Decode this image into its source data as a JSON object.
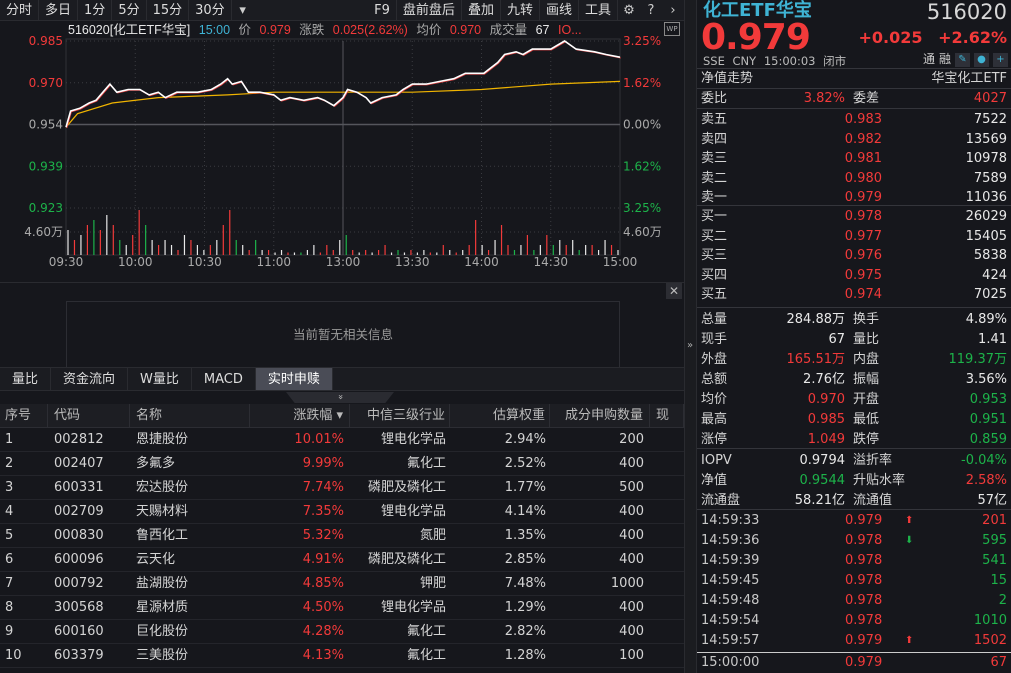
{
  "toolbar": {
    "items": [
      "分时",
      "多日",
      "1分",
      "5分",
      "15分",
      "30分"
    ],
    "more": "▾",
    "right": [
      "F9",
      "盘前盘后",
      "叠加",
      "九转",
      "画线",
      "工具"
    ],
    "icons": [
      "gear-icon",
      "help-icon",
      "chevron-right-icon"
    ]
  },
  "chart_header": {
    "code_name": "516020[化工ETF华宝]",
    "time": "15:00",
    "price_label": "价",
    "price": "0.979",
    "change_label": "涨跌",
    "change": "0.025(2.62%)",
    "avg_label": "均价",
    "avg": "0.970",
    "vol_label": "成交量",
    "vol": "67",
    "more": "IO...",
    "wp": "WP"
  },
  "chart_data": {
    "type": "line",
    "x_ticks": [
      "09:30",
      "10:00",
      "10:30",
      "11:00",
      "13:00",
      "13:30",
      "14:00",
      "14:30",
      "15:00"
    ],
    "y_ticks_left": [
      "0.985",
      "0.970",
      "0.954",
      "0.939",
      "0.923"
    ],
    "y_ticks_right": [
      "3.25%",
      "1.62%",
      "0.00%",
      "1.62%",
      "3.25%"
    ],
    "ylim": [
      0.923,
      0.985
    ],
    "prev_close": 0.954,
    "volume_tick": "4.60万",
    "volume_tick_value": 4.6,
    "colors": {
      "price": "#ffffff",
      "avg": "#f0b400",
      "up": "#f23a3a",
      "down": "#1db34a",
      "grid": "#3a3b40"
    },
    "price": [
      [
        "09:30",
        0.953
      ],
      [
        "09:32",
        0.959
      ],
      [
        "09:36",
        0.96
      ],
      [
        "09:40",
        0.962
      ],
      [
        "09:43",
        0.963
      ],
      [
        "09:46",
        0.966
      ],
      [
        "09:49",
        0.969
      ],
      [
        "09:52",
        0.966
      ],
      [
        "09:57",
        0.967
      ],
      [
        "10:02",
        0.967
      ],
      [
        "10:06",
        0.965
      ],
      [
        "10:10",
        0.966
      ],
      [
        "10:13",
        0.964
      ],
      [
        "10:18",
        0.966
      ],
      [
        "10:21",
        0.966
      ],
      [
        "10:27",
        0.966
      ],
      [
        "10:33",
        0.967
      ],
      [
        "10:37",
        0.969
      ],
      [
        "10:40",
        0.971
      ],
      [
        "10:42",
        0.969
      ],
      [
        "10:46",
        0.97
      ],
      [
        "10:49",
        0.966
      ],
      [
        "10:54",
        0.966
      ],
      [
        "11:00",
        0.965
      ],
      [
        "11:03",
        0.963
      ],
      [
        "11:07",
        0.964
      ],
      [
        "11:13",
        0.963
      ],
      [
        "11:19",
        0.964
      ],
      [
        "11:22",
        0.963
      ],
      [
        "11:26",
        0.961
      ],
      [
        "13:00",
        0.964
      ],
      [
        "13:02",
        0.967
      ],
      [
        "13:06",
        0.966
      ],
      [
        "13:10",
        0.964
      ],
      [
        "13:12",
        0.962
      ],
      [
        "13:17",
        0.964
      ],
      [
        "13:23",
        0.965
      ],
      [
        "13:26",
        0.967
      ],
      [
        "13:30",
        0.969
      ],
      [
        "13:36",
        0.969
      ],
      [
        "13:42",
        0.97
      ],
      [
        "13:48",
        0.971
      ],
      [
        "13:53",
        0.973
      ],
      [
        "14:01",
        0.973
      ],
      [
        "14:07",
        0.977
      ],
      [
        "14:10",
        0.98
      ],
      [
        "14:15",
        0.981
      ],
      [
        "14:18",
        0.98
      ],
      [
        "14:22",
        0.982
      ],
      [
        "14:30",
        0.982
      ],
      [
        "14:36",
        0.985
      ],
      [
        "14:41",
        0.982
      ],
      [
        "14:49",
        0.981
      ],
      [
        "14:54",
        0.98
      ],
      [
        "15:00",
        0.979
      ]
    ],
    "avg": [
      [
        "09:30",
        0.953
      ],
      [
        "09:35",
        0.958
      ],
      [
        "09:50",
        0.962
      ],
      [
        "10:10",
        0.964
      ],
      [
        "10:40",
        0.965
      ],
      [
        "11:00",
        0.966
      ],
      [
        "13:00",
        0.966
      ],
      [
        "13:30",
        0.966
      ],
      [
        "14:00",
        0.967
      ],
      [
        "14:30",
        0.969
      ],
      [
        "15:00",
        0.97
      ]
    ],
    "volume": [
      [
        5,
        "w"
      ],
      [
        3,
        "r"
      ],
      [
        4,
        "w"
      ],
      [
        6,
        "r"
      ],
      [
        7,
        "g"
      ],
      [
        5,
        "r"
      ],
      [
        8,
        "w"
      ],
      [
        6,
        "r"
      ],
      [
        3,
        "g"
      ],
      [
        2,
        "w"
      ],
      [
        4,
        "r"
      ],
      [
        9,
        "r"
      ],
      [
        6,
        "g"
      ],
      [
        3,
        "w"
      ],
      [
        2,
        "r"
      ],
      [
        3,
        "w"
      ],
      [
        2,
        "w"
      ],
      [
        1,
        "r"
      ],
      [
        4,
        "w"
      ],
      [
        3,
        "r"
      ],
      [
        2,
        "w"
      ],
      [
        1,
        "w"
      ],
      [
        2,
        "r"
      ],
      [
        3,
        "w"
      ],
      [
        6,
        "r"
      ],
      [
        9,
        "r"
      ],
      [
        3,
        "g"
      ],
      [
        2,
        "w"
      ],
      [
        1,
        "r"
      ],
      [
        3,
        "g"
      ],
      [
        1,
        "w"
      ],
      [
        1,
        "r"
      ],
      [
        0.5,
        "w"
      ],
      [
        1,
        "w"
      ],
      [
        0.5,
        "r"
      ],
      [
        0.5,
        "w"
      ],
      [
        0.5,
        "g"
      ],
      [
        1,
        "w"
      ],
      [
        2,
        "w"
      ],
      [
        0.5,
        "r"
      ],
      [
        2,
        "r"
      ],
      [
        1,
        "r"
      ],
      [
        3,
        "w"
      ],
      [
        4,
        "g"
      ],
      [
        1,
        "r"
      ],
      [
        0.5,
        "w"
      ],
      [
        1,
        "r"
      ],
      [
        0.5,
        "w"
      ],
      [
        1,
        "r"
      ],
      [
        2,
        "r"
      ],
      [
        0.5,
        "w"
      ],
      [
        1,
        "g"
      ],
      [
        0.5,
        "w"
      ],
      [
        1,
        "r"
      ],
      [
        0.5,
        "w"
      ],
      [
        1,
        "w"
      ],
      [
        0.5,
        "r"
      ],
      [
        0.5,
        "w"
      ],
      [
        2,
        "r"
      ],
      [
        1,
        "w"
      ],
      [
        0.5,
        "r"
      ],
      [
        1,
        "w"
      ],
      [
        2,
        "r"
      ],
      [
        7,
        "r"
      ],
      [
        2,
        "w"
      ],
      [
        1,
        "r"
      ],
      [
        3,
        "w"
      ],
      [
        6,
        "r"
      ],
      [
        2,
        "r"
      ],
      [
        1,
        "g"
      ],
      [
        2,
        "w"
      ],
      [
        4,
        "r"
      ],
      [
        1,
        "g"
      ],
      [
        2,
        "w"
      ],
      [
        4,
        "r"
      ],
      [
        2,
        "g"
      ],
      [
        3,
        "w"
      ],
      [
        2,
        "r"
      ],
      [
        3,
        "w"
      ],
      [
        1,
        "g"
      ],
      [
        2,
        "w"
      ],
      [
        2,
        "r"
      ],
      [
        1,
        "w"
      ],
      [
        3,
        "w"
      ],
      [
        2,
        "r"
      ],
      [
        1,
        "w"
      ]
    ]
  },
  "info": {
    "empty_text": "当前暂无相关信息",
    "close": "✕"
  },
  "tabs": [
    "量比",
    "资金流向",
    "W量比",
    "MACD",
    "实时申赎"
  ],
  "collapse": "»",
  "table": {
    "headers": [
      "序号",
      "代码",
      "名称",
      "涨跌幅 ▾",
      "中信三级行业",
      "估算权重",
      "成分申购数量",
      "现"
    ],
    "rows": [
      [
        "1",
        "002812",
        "恩捷股份",
        "10.01%",
        "锂电化学品",
        "2.94%",
        "200"
      ],
      [
        "2",
        "002407",
        "多氟多",
        "9.99%",
        "氟化工",
        "2.52%",
        "400"
      ],
      [
        "3",
        "600331",
        "宏达股份",
        "7.74%",
        "磷肥及磷化工",
        "1.77%",
        "500"
      ],
      [
        "4",
        "002709",
        "天赐材料",
        "7.35%",
        "锂电化学品",
        "4.14%",
        "400"
      ],
      [
        "5",
        "000830",
        "鲁西化工",
        "5.32%",
        "氮肥",
        "1.35%",
        "400"
      ],
      [
        "6",
        "600096",
        "云天化",
        "4.91%",
        "磷肥及磷化工",
        "2.85%",
        "400"
      ],
      [
        "7",
        "000792",
        "盐湖股份",
        "4.85%",
        "钾肥",
        "7.48%",
        "1000"
      ],
      [
        "8",
        "300568",
        "星源材质",
        "4.50%",
        "锂电化学品",
        "1.29%",
        "400"
      ],
      [
        "9",
        "600160",
        "巨化股份",
        "4.28%",
        "氟化工",
        "2.82%",
        "400"
      ],
      [
        "10",
        "603379",
        "三美股份",
        "4.13%",
        "氟化工",
        "1.28%",
        "100"
      ]
    ]
  },
  "divider": "»",
  "quote": {
    "name": "化工ETF华宝",
    "code": "516020",
    "price": "0.979",
    "change": "+0.025 +2.62%",
    "meta": "SSE CNY 15:00:03 闭市",
    "tong": "通",
    "rong": "融",
    "nav_trend": "净值走势",
    "fund_name": "华宝化工ETF",
    "weibi_label": "委比",
    "weibi": "3.82%",
    "weicha_label": "委差",
    "weicha": "4027",
    "asks": [
      [
        "卖五",
        "0.983",
        "7522"
      ],
      [
        "卖四",
        "0.982",
        "13569"
      ],
      [
        "卖三",
        "0.981",
        "10978"
      ],
      [
        "卖二",
        "0.980",
        "7589"
      ],
      [
        "卖一",
        "0.979",
        "11036"
      ]
    ],
    "bids": [
      [
        "买一",
        "0.978",
        "26029"
      ],
      [
        "买二",
        "0.977",
        "15405"
      ],
      [
        "买三",
        "0.976",
        "5838"
      ],
      [
        "买四",
        "0.975",
        "424"
      ],
      [
        "买五",
        "0.974",
        "7025"
      ]
    ],
    "stats": [
      [
        "总量",
        "284.88万",
        "white",
        "换手",
        "4.89%",
        "white"
      ],
      [
        "现手",
        "67",
        "white",
        "量比",
        "1.41",
        "white"
      ],
      [
        "外盘",
        "165.51万",
        "red",
        "内盘",
        "119.37万",
        "green"
      ],
      [
        "总额",
        "2.76亿",
        "white",
        "振幅",
        "3.56%",
        "white"
      ],
      [
        "均价",
        "0.970",
        "red",
        "开盘",
        "0.953",
        "green"
      ],
      [
        "最高",
        "0.985",
        "red",
        "最低",
        "0.951",
        "green"
      ],
      [
        "涨停",
        "1.049",
        "red",
        "跌停",
        "0.859",
        "green"
      ]
    ],
    "etf": [
      [
        "IOPV",
        "0.9794",
        "white",
        "溢折率",
        "-0.04%",
        "green"
      ],
      [
        "净值",
        "0.9544",
        "green",
        "升贴水率",
        "2.58%",
        "red"
      ],
      [
        "流通盘",
        "58.21亿",
        "white",
        "流通值",
        "57亿",
        "white"
      ]
    ],
    "ticks": [
      [
        "14:59:33",
        "0.979",
        "up",
        "201",
        "red"
      ],
      [
        "14:59:36",
        "0.978",
        "down",
        "595",
        "green"
      ],
      [
        "14:59:39",
        "0.978",
        "",
        "541",
        "green"
      ],
      [
        "14:59:45",
        "0.978",
        "",
        "15",
        "green"
      ],
      [
        "14:59:48",
        "0.978",
        "",
        "2",
        "green"
      ],
      [
        "14:59:54",
        "0.978",
        "",
        "1010",
        "green"
      ],
      [
        "14:59:57",
        "0.979",
        "up",
        "1502",
        "red"
      ],
      [
        "15:00:00",
        "0.979",
        "",
        "67",
        "red"
      ]
    ]
  }
}
